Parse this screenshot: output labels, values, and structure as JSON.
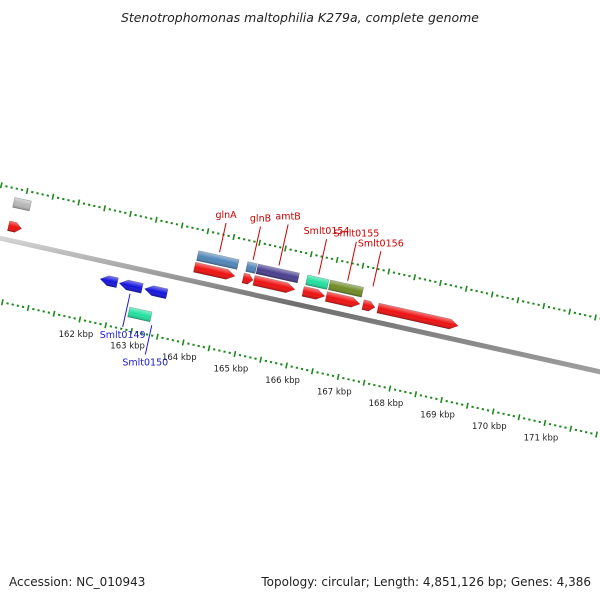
{
  "title": "Stenotrophomonas maltophilia K279a, complete genome",
  "footer": {
    "accession": "Accession: NC_010943",
    "summary": "Topology: circular; Length: 4,851,126 bp; Genes: 4,386"
  },
  "colors": {
    "backbone": "#8a8a8a",
    "tick": "#1e8a1e",
    "red_label": "#cc0000",
    "blue_label": "#1a1acc",
    "cds_red": "#ee1111",
    "cds_blue": "#1515dd",
    "cds_steel": "#4f86b8",
    "cds_indigo": "#4a3f8f",
    "cds_teal": "#22e0a0",
    "cds_olive": "#6f8b25",
    "cds_gray": "#b8b8b8"
  },
  "scale": {
    "start_kbp": 160,
    "end_kbp": 172,
    "labels": [
      "162 kbp",
      "163 kbp",
      "164 kbp",
      "165 kbp",
      "166 kbp",
      "167 kbp",
      "168 kbp",
      "169 kbp",
      "170 kbp",
      "171 kbp"
    ],
    "label_kbp": [
      162,
      163,
      164,
      165,
      166,
      167,
      168,
      169,
      170,
      171
    ]
  },
  "features": [
    {
      "track": 3,
      "strand": "+",
      "start": 160.3,
      "end": 160.62,
      "color": "cds_gray"
    },
    {
      "track": 1,
      "strand": "+",
      "start": 160.3,
      "end": 160.55,
      "color": "cds_red"
    },
    {
      "track": -1,
      "strand": "-",
      "start": 162.21,
      "end": 162.54,
      "color": "cds_blue"
    },
    {
      "track": -1,
      "strand": "-",
      "start": 162.58,
      "end": 163.02,
      "color": "cds_blue"
    },
    {
      "track": -1,
      "strand": "-",
      "start": 163.07,
      "end": 163.5,
      "color": "cds_blue"
    },
    {
      "track": -2,
      "strand": "-",
      "start": 162.87,
      "end": 163.3,
      "color": "cds_teal"
    },
    {
      "track": 2,
      "strand": "+",
      "start": 163.91,
      "end": 164.69,
      "color": "cds_steel"
    },
    {
      "track": 1,
      "strand": "+",
      "start": 163.9,
      "end": 164.68,
      "color": "cds_red"
    },
    {
      "track": 2,
      "strand": "+",
      "start": 164.86,
      "end": 165.04,
      "color": "cds_steel"
    },
    {
      "track": 1,
      "strand": "+",
      "start": 164.84,
      "end": 165.03,
      "color": "cds_red"
    },
    {
      "track": 2,
      "strand": "+",
      "start": 165.06,
      "end": 165.86,
      "color": "cds_indigo"
    },
    {
      "track": 1,
      "strand": "+",
      "start": 165.05,
      "end": 165.84,
      "color": "cds_red"
    },
    {
      "track": 2,
      "strand": "+",
      "start": 166.02,
      "end": 166.43,
      "color": "cds_teal"
    },
    {
      "track": 1,
      "strand": "+",
      "start": 166.0,
      "end": 166.42,
      "color": "cds_red"
    },
    {
      "track": 2,
      "strand": "+",
      "start": 166.46,
      "end": 167.1,
      "color": "cds_olive"
    },
    {
      "track": 1,
      "strand": "+",
      "start": 166.45,
      "end": 167.1,
      "color": "cds_red"
    },
    {
      "track": 1,
      "strand": "+",
      "start": 167.16,
      "end": 167.39,
      "color": "cds_red"
    },
    {
      "track": 1,
      "strand": "+",
      "start": 167.45,
      "end": 169.0,
      "color": "cds_red"
    }
  ],
  "gene_labels": [
    {
      "text": "glnA",
      "pos": 164.3,
      "track": 2,
      "len": 38,
      "color": "red_label"
    },
    {
      "text": "glnB",
      "pos": 164.95,
      "track": 2,
      "len": 42,
      "color": "red_label"
    },
    {
      "text": "amtB",
      "pos": 165.45,
      "track": 2,
      "len": 50,
      "color": "red_label"
    },
    {
      "text": "Smlt0154",
      "pos": 166.22,
      "track": 2,
      "len": 44,
      "color": "red_label"
    },
    {
      "text": "Smlt0155",
      "pos": 166.78,
      "track": 2,
      "len": 48,
      "color": "red_label"
    },
    {
      "text": "Smlt0156",
      "pos": 167.27,
      "track": 2,
      "len": 44,
      "color": "red_label"
    },
    {
      "text": "Smlt0149",
      "pos": 162.82,
      "track": -1,
      "len": 42,
      "color": "blue_label"
    },
    {
      "text": "Smlt0150",
      "pos": 163.35,
      "track": -2,
      "len": 38,
      "color": "blue_label"
    }
  ]
}
